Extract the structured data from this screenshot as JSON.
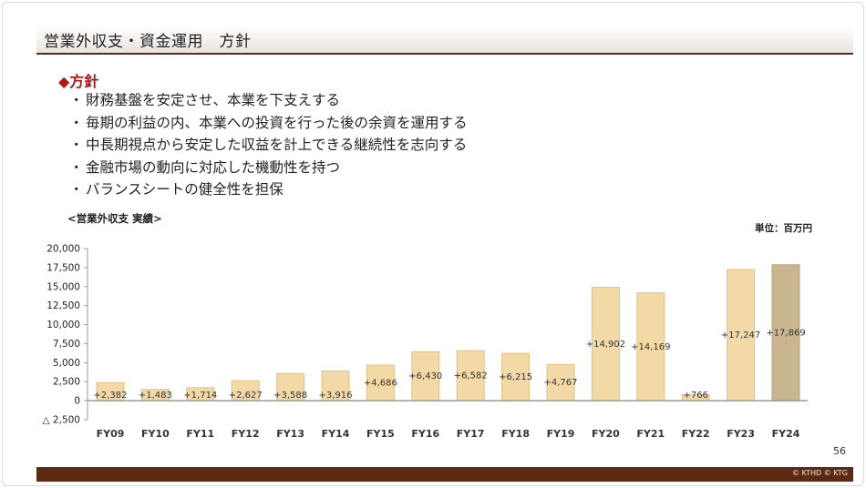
{
  "slide": {
    "title": "営業外収支・資金運用　方針",
    "policy_heading": "◆方針",
    "policy_items": [
      "財務基盤を安定させ、本業を下支えする",
      "毎期の利益の内、本業への投資を行った後の余資を運用する",
      "中長期視点から安定した収益を計上できる継続性を志向する",
      "金融市場の動向に対応した機動性を持つ",
      "バランスシートの健全性を担保"
    ],
    "bullet": "・",
    "page_number": "56",
    "copyright": "© KTHD © KTG"
  },
  "colors": {
    "title_rule": "#5a2a12",
    "heading_red": "#b01818",
    "bar_fill": "#f3d9a5",
    "bar_stroke": "#e0c286",
    "bar_highlight_fill": "#c9b68e",
    "bar_highlight_stroke": "#b7a37b",
    "axis": "#9a9a9a",
    "footer": "#5c2a12"
  },
  "chart_data": {
    "type": "bar",
    "title": "<営業外収支 実績>",
    "unit": "単位：百万円",
    "categories": [
      "FY09",
      "FY10",
      "FY11",
      "FY12",
      "FY13",
      "FY14",
      "FY15",
      "FY16",
      "FY17",
      "FY18",
      "FY19",
      "FY20",
      "FY21",
      "FY22",
      "FY23",
      "FY24"
    ],
    "values": [
      2382,
      1483,
      1714,
      2627,
      3588,
      3916,
      4686,
      6430,
      6582,
      6215,
      4767,
      14902,
      14169,
      766,
      17247,
      17869
    ],
    "value_labels": [
      "+2,382",
      "+1,483",
      "+1,714",
      "+2,627",
      "+3,588",
      "+3,916",
      "+4,686",
      "+6,430",
      "+6,582",
      "+6,215",
      "+4,767",
      "+14,902",
      "+14,169",
      "+766",
      "+17,247",
      "+17,869"
    ],
    "highlight_index": 15,
    "ylim": [
      -2500,
      20000
    ],
    "yticks": [
      -2500,
      0,
      2500,
      5000,
      7500,
      10000,
      12500,
      15000,
      17500,
      20000
    ],
    "ytick_labels": [
      "△ 2,500",
      "0",
      "2,500",
      "5,000",
      "7,500",
      "10,000",
      "12,500",
      "15,000",
      "17,500",
      "20,000"
    ],
    "xlabel": "",
    "ylabel": "",
    "grid": false,
    "legend": "none"
  }
}
